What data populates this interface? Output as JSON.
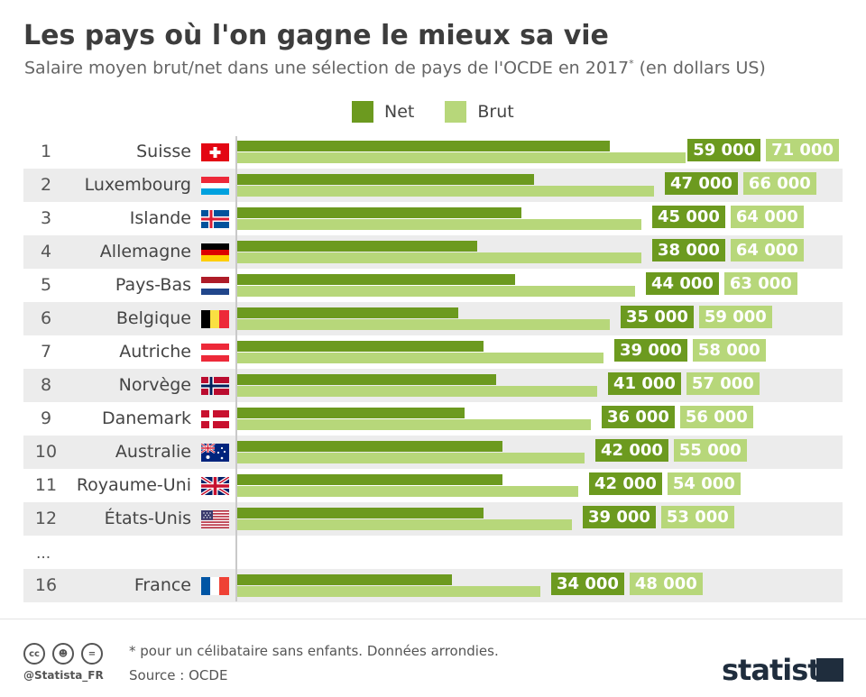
{
  "title": "Les pays où l'on gagne le mieux sa vie",
  "subtitle_main": "Salaire moyen brut/net dans une sélection de pays de l'OCDE en 2017",
  "subtitle_mark": "*",
  "subtitle_unit": " (en dollars US)",
  "ellipsis": "...",
  "footer": {
    "note": "* pour un célibataire sans enfants. Données arrondies.",
    "source": "Source : OCDE",
    "handle": "@Statista_FR",
    "brand": "statista",
    "cc_icons": [
      "cc-icon",
      "by-icon",
      "nd-icon"
    ]
  },
  "colors": {
    "net": "#6c9a1f",
    "brut": "#b7d77a",
    "shade": "#ececec"
  },
  "chart_data": {
    "type": "bar",
    "orientation": "horizontal",
    "legend_position": "top-center",
    "grid": false,
    "xlim": [
      0,
      75000
    ],
    "series": [
      {
        "name": "Net",
        "color": "#6c9a1f",
        "values": [
          59000,
          47000,
          45000,
          38000,
          44000,
          35000,
          39000,
          41000,
          36000,
          42000,
          42000,
          39000,
          34000
        ]
      },
      {
        "name": "Brut",
        "color": "#b7d77a",
        "values": [
          71000,
          66000,
          64000,
          64000,
          63000,
          59000,
          58000,
          57000,
          56000,
          55000,
          54000,
          53000,
          48000
        ]
      }
    ],
    "categories": [
      "Suisse",
      "Luxembourg",
      "Islande",
      "Allemagne",
      "Pays-Bas",
      "Belgique",
      "Autriche",
      "Norvège",
      "Danemark",
      "Australie",
      "Royaume-Uni",
      "États-Unis",
      "France"
    ],
    "ranks": [
      "1",
      "2",
      "3",
      "4",
      "5",
      "6",
      "7",
      "8",
      "9",
      "10",
      "11",
      "12",
      "16"
    ],
    "net_labels": [
      "59 000",
      "47 000",
      "45 000",
      "38 000",
      "44 000",
      "35 000",
      "39 000",
      "41 000",
      "36 000",
      "42 000",
      "42 000",
      "39 000",
      "34 000"
    ],
    "brut_labels": [
      "71 000",
      "66 000",
      "64 000",
      "64 000",
      "63 000",
      "59 000",
      "58 000",
      "57 000",
      "56 000",
      "55 000",
      "54 000",
      "53 000",
      "48 000"
    ],
    "flags": [
      "ch",
      "lu",
      "is",
      "de",
      "nl",
      "be",
      "at",
      "no",
      "dk",
      "au",
      "gb",
      "us",
      "fr"
    ]
  }
}
